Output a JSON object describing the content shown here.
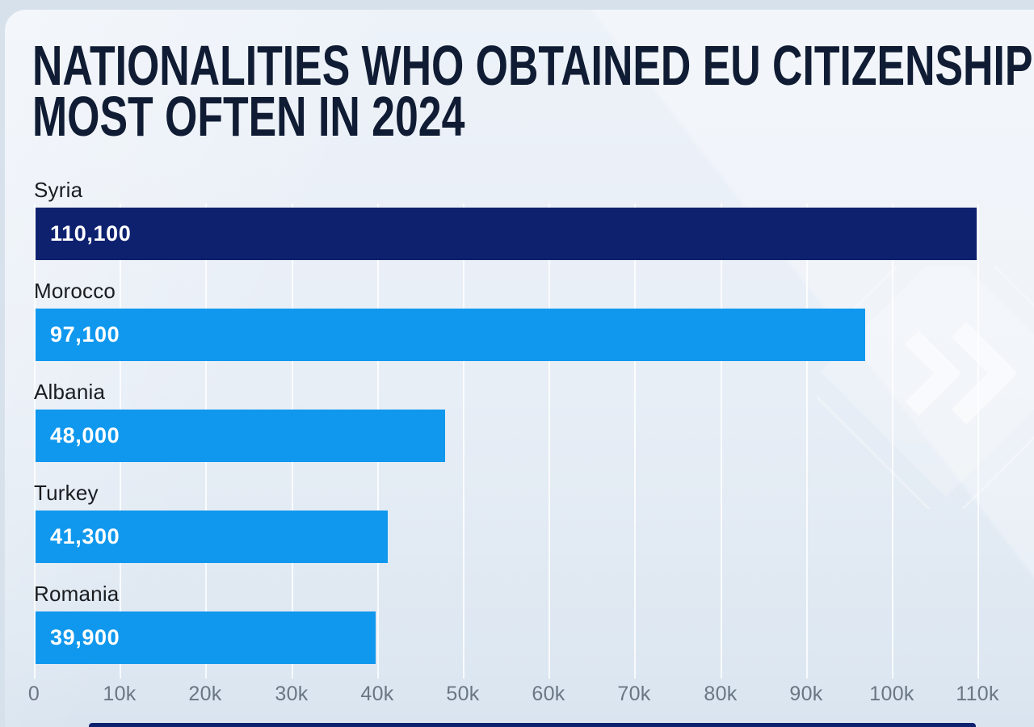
{
  "header": {
    "title_lines": [
      "NATIONALITIES WHO OBTAINED EU CITIZENSHIP",
      "MOST OFTEN IN 2024"
    ]
  },
  "chart_data": {
    "type": "bar",
    "orientation": "horizontal",
    "title": "Nationalities who obtained EU citizenship most often in 2024",
    "categories": [
      "Syria",
      "Morocco",
      "Albania",
      "Turkey",
      "Romania"
    ],
    "values": [
      110100,
      97100,
      48000,
      41300,
      39900
    ],
    "value_labels": [
      "110,100",
      "97,100",
      "48,000",
      "41,300",
      "39,900"
    ],
    "bar_colors": [
      "#0e216f",
      "#1098ee",
      "#1098ee",
      "#1098ee",
      "#1098ee"
    ],
    "xlabel": "",
    "ylabel": "",
    "xlim": [
      0,
      115000
    ],
    "tick_values": [
      0,
      10000,
      20000,
      30000,
      40000,
      50000,
      60000,
      70000,
      80000,
      90000,
      100000,
      110000
    ],
    "ticks": [
      "0",
      "10k",
      "20k",
      "30k",
      "40k",
      "50k",
      "60k",
      "70k",
      "80k",
      "90k",
      "100k",
      "110k"
    ],
    "grid": true,
    "legend": "none"
  },
  "colors": {
    "page_background": "#d7e1ec",
    "card_background": "#e8eef6",
    "title_text": "#101c33",
    "label_text": "#191c20",
    "value_text": "#ffffff",
    "axis_text": "#6b7684",
    "gridline": "#ffffff",
    "accent_blue": "#1098ee",
    "accent_navy": "#0e216f"
  },
  "decorations": {
    "watermark_icon": "double-chevron-right-diamond-watermark",
    "footer_accent": "navy-strip"
  }
}
